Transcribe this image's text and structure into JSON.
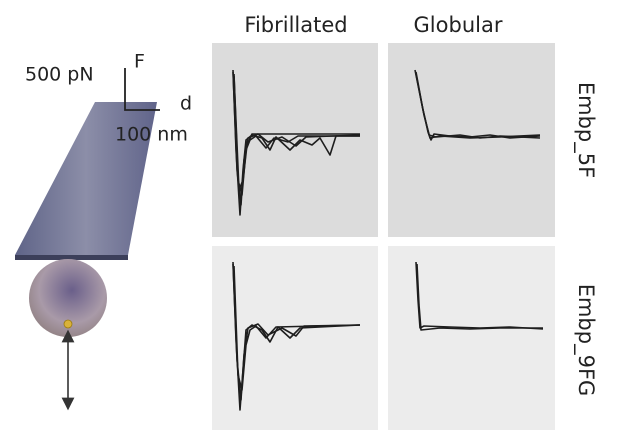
{
  "columns": [
    "Fibrillated",
    "Globular"
  ],
  "rows": [
    "Embp_5F",
    "Embp_9FG"
  ],
  "scale_bar": {
    "force": "500 pN",
    "force_axis": "F",
    "distance_axis": "d",
    "distance": "100 nm"
  }
}
